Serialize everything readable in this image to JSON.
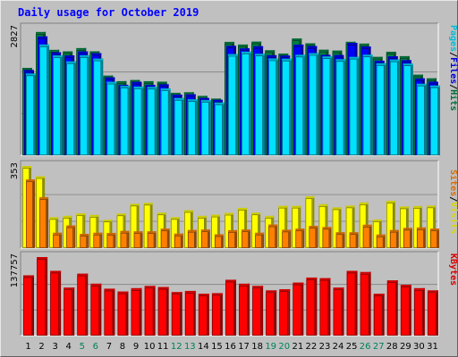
{
  "chart_data": [
    {
      "type": "bar",
      "title": "Daily usage for October 2019",
      "categories": [
        "1",
        "2",
        "3",
        "4",
        "5",
        "6",
        "7",
        "8",
        "9",
        "10",
        "11",
        "12",
        "13",
        "14",
        "15",
        "16",
        "17",
        "18",
        "19",
        "20",
        "21",
        "22",
        "23",
        "24",
        "25",
        "26",
        "27",
        "28",
        "29",
        "30",
        "31"
      ],
      "weekend_categories": [
        "5",
        "6",
        "12",
        "13",
        "19",
        "20",
        "26",
        "27"
      ],
      "y_max_label": "2827",
      "ylim": [
        0,
        2827
      ],
      "grid": true,
      "legend_placement": "right",
      "legend_separator": "/",
      "series": [
        {
          "name": "Hits",
          "color": "#008040",
          "values": [
            1938,
            2750,
            2346,
            2312,
            2386,
            2313,
            1764,
            1638,
            1664,
            1637,
            1626,
            1374,
            1387,
            1304,
            1243,
            2526,
            2466,
            2533,
            2337,
            2262,
            2603,
            2494,
            2349,
            2330,
            2528,
            2488,
            2188,
            2303,
            2203,
            1785,
            1702
          ]
        },
        {
          "name": "Files",
          "color": "#0000ff",
          "values": [
            1890,
            2650,
            2290,
            2220,
            2310,
            2270,
            1724,
            1553,
            1621,
            1553,
            1567,
            1333,
            1339,
            1256,
            1216,
            2437,
            2379,
            2428,
            2224,
            2216,
            2464,
            2430,
            2233,
            2229,
            2502,
            2420,
            2100,
            2199,
            2113,
            1700,
            1626
          ]
        },
        {
          "name": "Pages",
          "color": "#00e0ff",
          "values": [
            1810,
            2467,
            2220,
            2085,
            2224,
            2148,
            1624,
            1530,
            1514,
            1508,
            1472,
            1256,
            1226,
            1209,
            1154,
            2251,
            2305,
            2257,
            2151,
            2145,
            2234,
            2272,
            2197,
            2134,
            2187,
            2236,
            2043,
            2127,
            2035,
            1580,
            1539
          ]
        }
      ]
    },
    {
      "type": "bar",
      "y_max_label": "353",
      "ylim": [
        0,
        353
      ],
      "grid": true,
      "legend_placement": "right",
      "legend_separator": "/",
      "series": [
        {
          "name": "Visits",
          "color": "#ffff00",
          "values": [
            353,
            308,
            128,
            134,
            145,
            138,
            117,
            144,
            187,
            191,
            148,
            128,
            159,
            134,
            139,
            147,
            169,
            148,
            134,
            178,
            178,
            220,
            185,
            171,
            179,
            193,
            118,
            200,
            175,
            177,
            179
          ]
        },
        {
          "name": "Sites",
          "color": "#ff8000",
          "values": [
            294,
            216,
            60,
            92,
            55,
            60,
            59,
            68,
            66,
            66,
            78,
            56,
            72,
            74,
            53,
            71,
            74,
            60,
            96,
            73,
            78,
            90,
            85,
            62,
            62,
            95,
            52,
            72,
            81,
            83,
            78
          ]
        }
      ]
    },
    {
      "type": "bar",
      "y_max_label": "137757",
      "ylim": [
        0,
        137757
      ],
      "grid": true,
      "legend_placement": "right",
      "series": [
        {
          "name": "KBytes",
          "color": "#ff0000",
          "values": [
            105000,
            137757,
            113000,
            83000,
            108000,
            90000,
            81000,
            76000,
            82000,
            86000,
            84000,
            75000,
            77000,
            72000,
            73000,
            97000,
            90000,
            86000,
            78000,
            80000,
            92000,
            101000,
            100000,
            83000,
            113000,
            111000,
            72000,
            96000,
            88000,
            82000,
            78000
          ]
        }
      ]
    }
  ]
}
